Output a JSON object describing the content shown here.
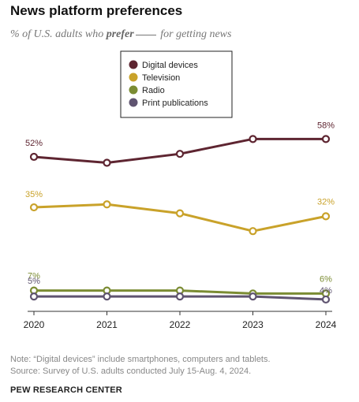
{
  "header": {
    "title": "News platform preferences",
    "subtitle_before": "% of U.S. adults who ",
    "subtitle_em": "prefer",
    "subtitle_after": " for getting news"
  },
  "footer": {
    "note": "Note: “Digital devices” include smartphones, computers and tablets.",
    "source": "Source: Survey of U.S. adults conducted July 15-Aug. 4, 2024.",
    "org": "PEW RESEARCH CENTER"
  },
  "chart_data": {
    "type": "line",
    "x": [
      2020,
      2021,
      2022,
      2023,
      2024
    ],
    "ylim": [
      0,
      63
    ],
    "grid": false,
    "legend": "top-center",
    "series": [
      {
        "name": "Digital devices",
        "color": "#5e2531",
        "values": [
          52,
          50,
          53,
          58,
          58
        ],
        "labels": [
          {
            "index": 0,
            "text": "52%"
          },
          {
            "index": 4,
            "text": "58%"
          }
        ]
      },
      {
        "name": "Television",
        "color": "#c9a22a",
        "values": [
          35,
          36,
          33,
          27,
          32
        ],
        "labels": [
          {
            "index": 0,
            "text": "35%"
          },
          {
            "index": 4,
            "text": "32%"
          }
        ]
      },
      {
        "name": "Radio",
        "color": "#7b8c33",
        "values": [
          7,
          7,
          7,
          6,
          6
        ],
        "labels": [
          {
            "index": 0,
            "text": "7%"
          },
          {
            "index": 4,
            "text": "6%"
          }
        ]
      },
      {
        "name": "Print publications",
        "color": "#5f5470",
        "values": [
          5,
          5,
          5,
          5,
          4
        ],
        "labels": [
          {
            "index": 0,
            "text": "5%"
          },
          {
            "index": 4,
            "text": "4%"
          }
        ]
      }
    ]
  }
}
